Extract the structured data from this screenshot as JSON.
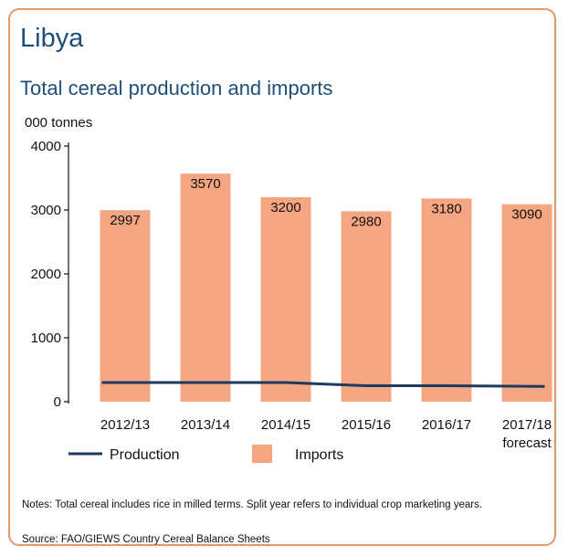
{
  "country": "Libya",
  "subtitle": "Total cereal production and imports",
  "unit_label": "000 tonnes",
  "notes": "Notes: Total cereal includes rice in milled terms. Split year refers to individual crop marketing years.",
  "source": "Source: FAO/GIEWS Country Cereal Balance Sheets",
  "colors": {
    "imports": "#f4a582",
    "production": "#1f3a5f",
    "border": "#e8956a",
    "title": "#1f4e79"
  },
  "chart_data": {
    "type": "bar",
    "categories": [
      "2012/13",
      "2013/14",
      "2014/15",
      "2015/16",
      "2016/17",
      "2017/18"
    ],
    "category_sublabels": [
      "",
      "",
      "",
      "",
      "",
      "forecast"
    ],
    "ylabel": "000 tonnes",
    "ylim": [
      0,
      4000
    ],
    "yticks": [
      0,
      1000,
      2000,
      3000,
      4000
    ],
    "grid": false,
    "legend_position": "bottom",
    "series": [
      {
        "name": "Imports",
        "kind": "bar",
        "values": [
          2997,
          3570,
          3200,
          2980,
          3180,
          3090
        ],
        "labels": [
          "2997",
          "3570",
          "3200",
          "2980",
          "3180",
          "3090"
        ]
      },
      {
        "name": "Production",
        "kind": "line",
        "values": [
          300,
          300,
          300,
          250,
          250,
          240
        ]
      }
    ]
  }
}
